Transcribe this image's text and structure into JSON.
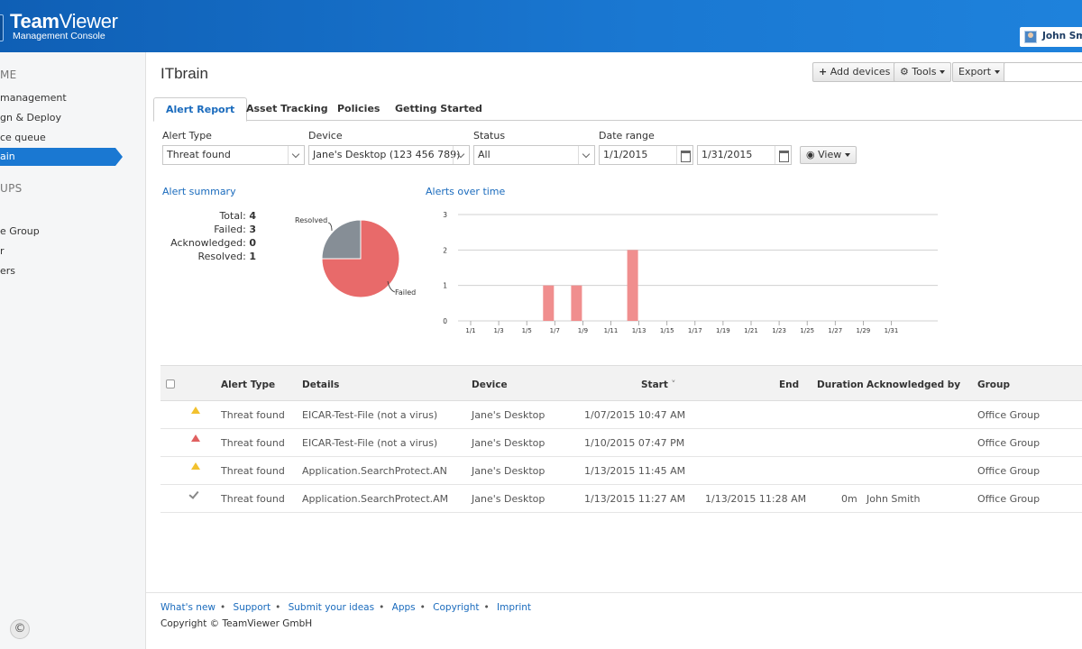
{
  "header": {
    "logo_title_bold": "Team",
    "logo_title_rest": "Viewer",
    "logo_subtitle": "Management Console",
    "user_name": "John Sm"
  },
  "sidebar": {
    "section_home": "ME",
    "items_top": [
      "management",
      "gn & Deploy",
      "ce queue"
    ],
    "active_item": "ain",
    "section_groups": "UPS",
    "items_groups": [
      "e Group",
      "r",
      "ers"
    ]
  },
  "page": {
    "title": "ITbrain",
    "toolbar": {
      "add_devices": "Add devices",
      "tools": "Tools",
      "export": "Export"
    },
    "tabs": [
      "Alert Report",
      "Asset Tracking",
      "Policies",
      "Getting Started"
    ]
  },
  "filters": {
    "alert_type_label": "Alert Type",
    "alert_type_value": "Threat found",
    "device_label": "Device",
    "device_value": "Jane's Desktop (123 456 789)",
    "status_label": "Status",
    "status_value": "All",
    "date_range_label": "Date range",
    "date_from": "1/1/2015",
    "date_to": "1/31/2015",
    "view_label": "View"
  },
  "summary": {
    "title": "Alert summary",
    "rows": [
      {
        "label": "Total:",
        "value": "4"
      },
      {
        "label": "Failed:",
        "value": "3"
      },
      {
        "label": "Acknowledged:",
        "value": "0"
      },
      {
        "label": "Resolved:",
        "value": "1"
      }
    ]
  },
  "chart_data": [
    {
      "type": "pie",
      "labels": [
        "Resolved",
        "Failed"
      ],
      "values": [
        1,
        3
      ],
      "colors": [
        "#868e96",
        "#e86a6a"
      ]
    },
    {
      "type": "bar",
      "title": "Alerts over time",
      "categories": [
        "1/1",
        "1/3",
        "1/5",
        "1/7",
        "1/9",
        "1/11",
        "1/13",
        "1/15",
        "1/17",
        "1/19",
        "1/21",
        "1/23",
        "1/25",
        "1/27",
        "1/29",
        "1/31"
      ],
      "values": [
        0,
        0,
        0,
        1,
        1,
        0,
        2,
        0,
        0,
        0,
        0,
        0,
        0,
        0,
        0,
        0
      ],
      "ylim": [
        0,
        3
      ],
      "yticks": [
        0,
        1,
        2,
        3
      ],
      "color": "#f08e8e",
      "grid": true
    }
  ],
  "table": {
    "headers": {
      "alert_type": "Alert Type",
      "details": "Details",
      "device": "Device",
      "start": "Start",
      "end": "End",
      "duration": "Duration",
      "acknowledged_by": "Acknowledged by",
      "group": "Group"
    },
    "rows": [
      {
        "status": "warning",
        "alert_type": "Threat found",
        "details": "EICAR-Test-File (not a virus)",
        "device": "Jane's Desktop",
        "start": "1/07/2015 10:47 AM",
        "end": "",
        "duration": "",
        "acknowledged_by": "",
        "group": "Office Group"
      },
      {
        "status": "error",
        "alert_type": "Threat found",
        "details": "EICAR-Test-File (not a virus)",
        "device": "Jane's Desktop",
        "start": "1/10/2015 07:47 PM",
        "end": "",
        "duration": "",
        "acknowledged_by": "",
        "group": "Office Group"
      },
      {
        "status": "warning",
        "alert_type": "Threat found",
        "details": "Application.SearchProtect.AN",
        "device": "Jane's Desktop",
        "start": "1/13/2015 11:45 AM",
        "end": "",
        "duration": "",
        "acknowledged_by": "",
        "group": "Office Group"
      },
      {
        "status": "resolved",
        "alert_type": "Threat found",
        "details": "Application.SearchProtect.AM",
        "device": "Jane's Desktop",
        "start": "1/13/2015 11:27 AM",
        "end": "1/13/2015 11:28 AM",
        "duration": "0m",
        "acknowledged_by": "John Smith",
        "group": "Office Group"
      }
    ]
  },
  "footer": {
    "links": [
      "What's new",
      "Support",
      "Submit your ideas",
      "Apps",
      "Copyright",
      "Imprint"
    ],
    "copyright": "Copyright © TeamViewer GmbH"
  }
}
